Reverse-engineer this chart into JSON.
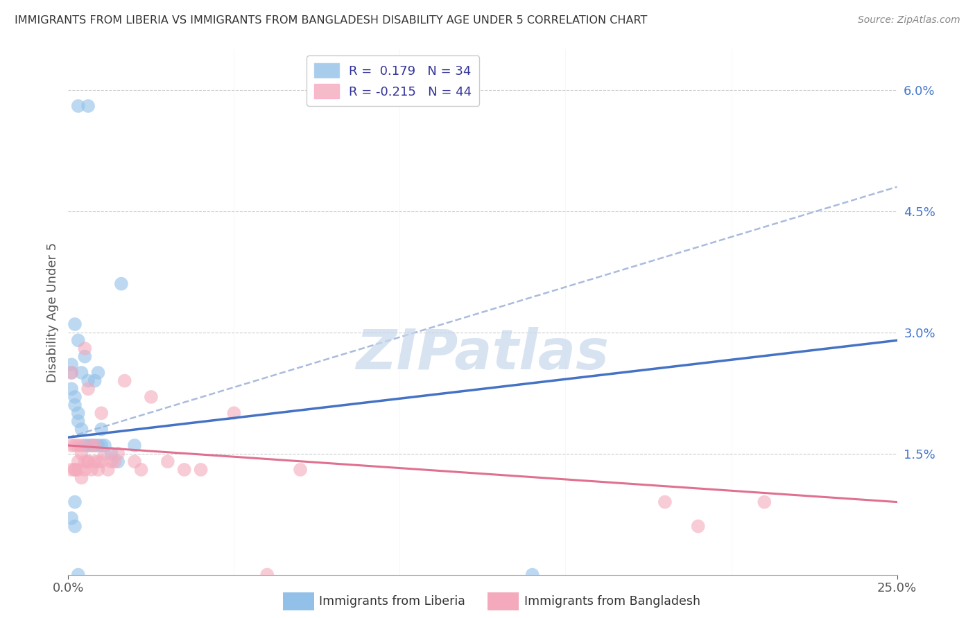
{
  "title": "IMMIGRANTS FROM LIBERIA VS IMMIGRANTS FROM BANGLADESH DISABILITY AGE UNDER 5 CORRELATION CHART",
  "source": "Source: ZipAtlas.com",
  "ylabel": "Disability Age Under 5",
  "right_yticks": [
    "6.0%",
    "4.5%",
    "3.0%",
    "1.5%"
  ],
  "right_ytick_vals": [
    0.06,
    0.045,
    0.03,
    0.015
  ],
  "xlim": [
    0.0,
    0.25
  ],
  "ylim": [
    0.0,
    0.065
  ],
  "legend_liberia_R": "0.179",
  "legend_liberia_N": "34",
  "legend_bangladesh_R": "-0.215",
  "legend_bangladesh_N": "44",
  "liberia_color": "#92C0E8",
  "bangladesh_color": "#F4AABC",
  "line_liberia_color": "#4472C4",
  "line_bangladesh_color": "#E07090",
  "dashed_line_color": "#AABBDD",
  "watermark_color": "#C8D8EC",
  "liberia_x": [
    0.003,
    0.006,
    0.002,
    0.003,
    0.001,
    0.001,
    0.001,
    0.002,
    0.002,
    0.003,
    0.003,
    0.004,
    0.004,
    0.005,
    0.005,
    0.006,
    0.006,
    0.007,
    0.008,
    0.008,
    0.009,
    0.009,
    0.01,
    0.01,
    0.011,
    0.013,
    0.015,
    0.016,
    0.02,
    0.001,
    0.002,
    0.002,
    0.003,
    0.14
  ],
  "liberia_y": [
    0.058,
    0.058,
    0.031,
    0.029,
    0.026,
    0.025,
    0.023,
    0.022,
    0.021,
    0.02,
    0.019,
    0.018,
    0.025,
    0.027,
    0.016,
    0.016,
    0.024,
    0.016,
    0.016,
    0.024,
    0.016,
    0.025,
    0.018,
    0.016,
    0.016,
    0.015,
    0.014,
    0.036,
    0.016,
    0.007,
    0.006,
    0.009,
    0.0,
    0.0
  ],
  "bangladesh_x": [
    0.001,
    0.001,
    0.002,
    0.002,
    0.003,
    0.003,
    0.004,
    0.004,
    0.005,
    0.005,
    0.006,
    0.006,
    0.007,
    0.007,
    0.008,
    0.008,
    0.009,
    0.009,
    0.01,
    0.01,
    0.011,
    0.012,
    0.013,
    0.014,
    0.015,
    0.017,
    0.02,
    0.022,
    0.025,
    0.03,
    0.035,
    0.04,
    0.05,
    0.06,
    0.07,
    0.18,
    0.19,
    0.21,
    0.001,
    0.002,
    0.003,
    0.004,
    0.005,
    0.006
  ],
  "bangladesh_y": [
    0.016,
    0.013,
    0.016,
    0.013,
    0.016,
    0.013,
    0.015,
    0.012,
    0.028,
    0.014,
    0.023,
    0.014,
    0.016,
    0.013,
    0.016,
    0.014,
    0.014,
    0.013,
    0.014,
    0.02,
    0.015,
    0.013,
    0.014,
    0.014,
    0.015,
    0.024,
    0.014,
    0.013,
    0.022,
    0.014,
    0.013,
    0.013,
    0.02,
    0.0,
    0.013,
    0.009,
    0.006,
    0.009,
    0.025,
    0.013,
    0.014,
    0.016,
    0.013,
    0.014
  ],
  "liberia_line_x": [
    0.0,
    0.25
  ],
  "liberia_line_y": [
    0.017,
    0.029
  ],
  "bangladesh_line_x": [
    0.0,
    0.25
  ],
  "bangladesh_line_y": [
    0.016,
    0.009
  ],
  "dashed_line_x": [
    0.0,
    0.25
  ],
  "dashed_line_y": [
    0.017,
    0.048
  ]
}
